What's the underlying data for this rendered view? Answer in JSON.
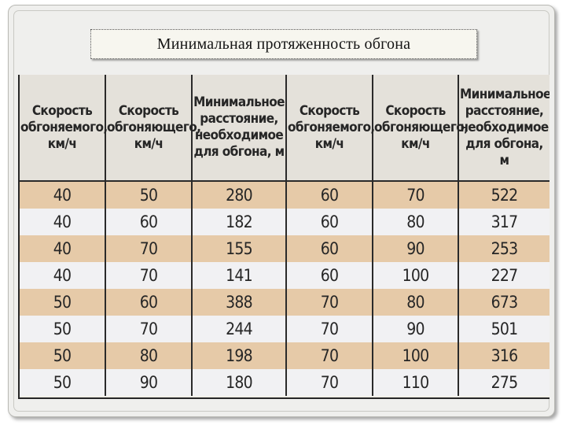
{
  "slide": {
    "title": "Минимальная протяженность обгона"
  },
  "table": {
    "headers": [
      "Скорость обгоняемого, км/ч",
      "Скорость обгоняющего, км/ч",
      "Минимальное расстояние, необходимое для обгона, м",
      "Скорость обгоняемого, км/ч",
      "Скорость обгоняющего, км/ч",
      "Минимальное расстояние, необходимое для обгона, м"
    ],
    "rows": [
      [
        "40",
        "50",
        "280",
        "60",
        "70",
        "522"
      ],
      [
        "40",
        "60",
        "182",
        "60",
        "80",
        "317"
      ],
      [
        "40",
        "70",
        "155",
        "60",
        "90",
        "253"
      ],
      [
        "40",
        "70",
        "141",
        "60",
        "100",
        "227"
      ],
      [
        "50",
        "60",
        "388",
        "70",
        "80",
        "673"
      ],
      [
        "50",
        "70",
        "244",
        "70",
        "90",
        "501"
      ],
      [
        "50",
        "80",
        "198",
        "70",
        "100",
        "316"
      ],
      [
        "50",
        "90",
        "180",
        "70",
        "110",
        "275"
      ]
    ]
  },
  "colors": {
    "stripe_tan": "#e6caa8",
    "stripe_light": "#f1f1f3"
  }
}
